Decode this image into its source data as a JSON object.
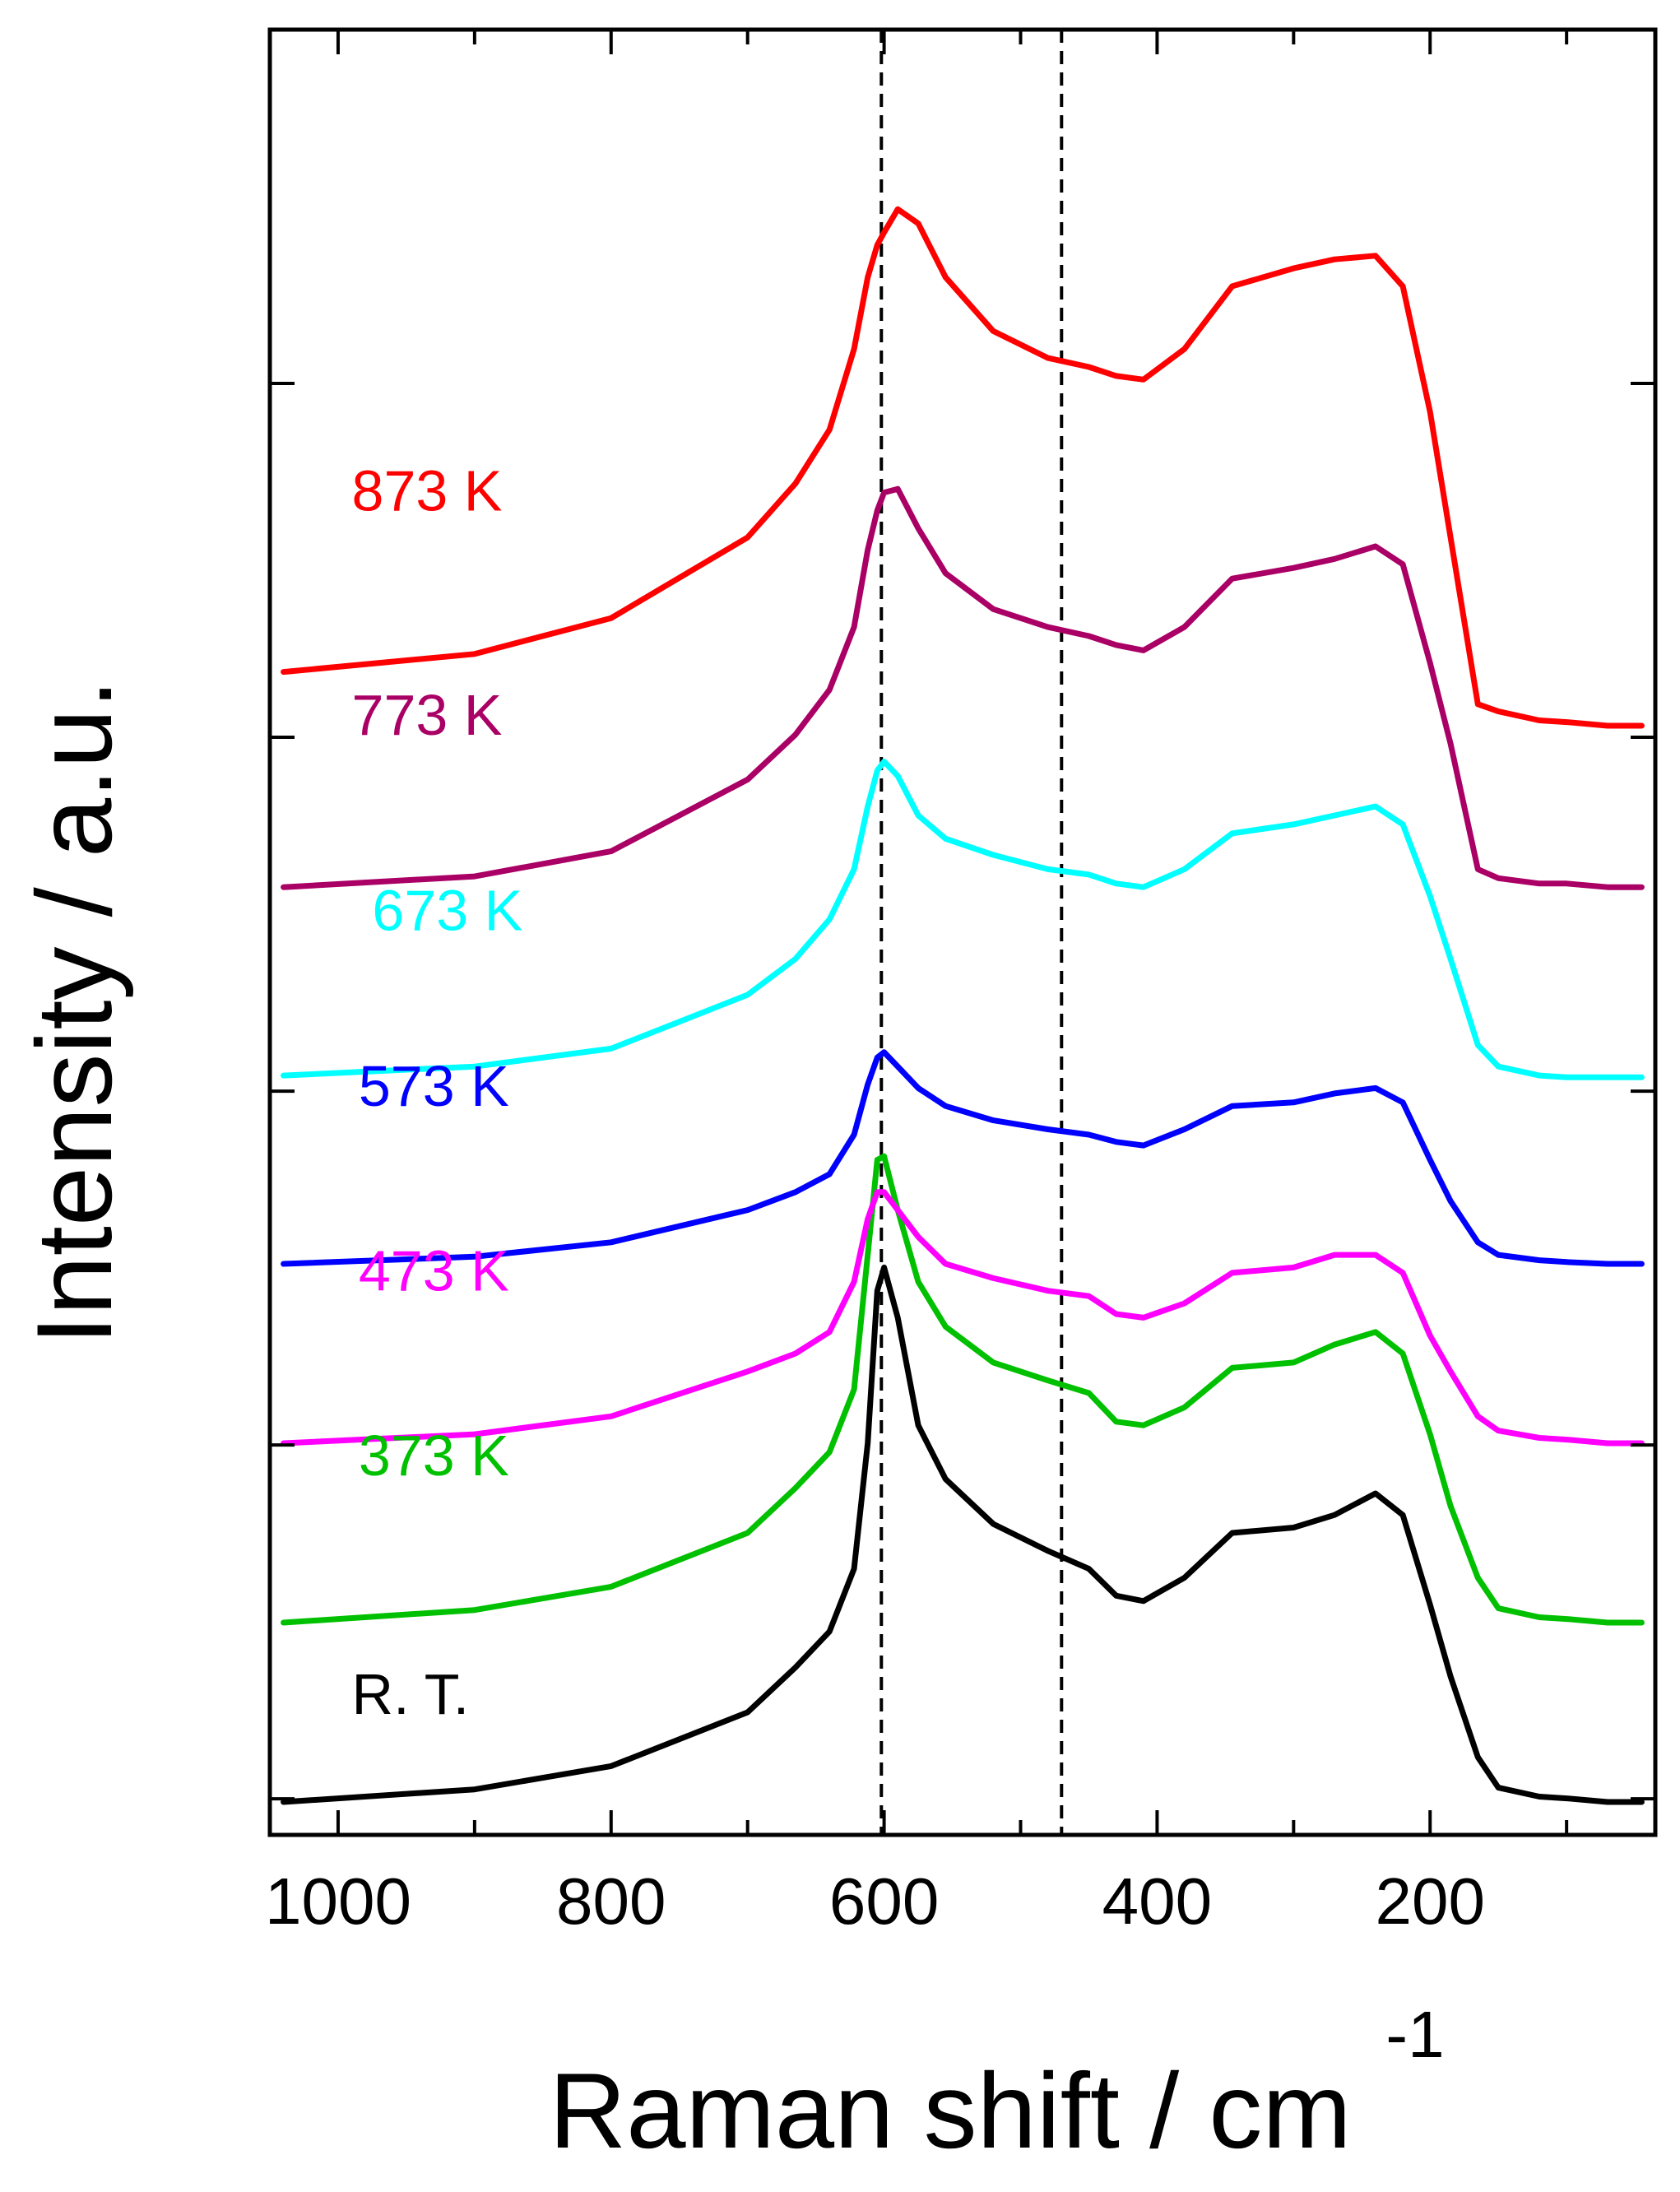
{
  "chart_data": {
    "type": "line",
    "title": "",
    "xlabel": "Raman shift / cm",
    "xlabel_superscript": "-1",
    "ylabel": "Intensity / a.u.",
    "xlim": [
      1050,
      35
    ],
    "x_reversed": true,
    "ylim": [
      0,
      10
    ],
    "x_ticks": [
      1000,
      800,
      600,
      400,
      200
    ],
    "y_tick_count": 5,
    "reference_lines": [
      602,
      470
    ],
    "series": [
      {
        "name": "R. T.",
        "color": "#000000",
        "label_x": 990,
        "label_y": 0.49,
        "points": [
          [
            1040,
            0.0
          ],
          [
            900,
            0.07
          ],
          [
            800,
            0.2
          ],
          [
            700,
            0.5
          ],
          [
            665,
            0.75
          ],
          [
            640,
            0.95
          ],
          [
            622,
            1.3
          ],
          [
            612,
            2.0
          ],
          [
            605,
            2.85
          ],
          [
            600,
            2.98
          ],
          [
            590,
            2.7
          ],
          [
            575,
            2.1
          ],
          [
            555,
            1.8
          ],
          [
            520,
            1.55
          ],
          [
            480,
            1.4
          ],
          [
            450,
            1.3
          ],
          [
            430,
            1.15
          ],
          [
            410,
            1.12
          ],
          [
            380,
            1.25
          ],
          [
            345,
            1.5
          ],
          [
            300,
            1.53
          ],
          [
            270,
            1.6
          ],
          [
            240,
            1.72
          ],
          [
            220,
            1.6
          ],
          [
            200,
            1.1
          ],
          [
            185,
            0.7
          ],
          [
            165,
            0.25
          ],
          [
            150,
            0.08
          ],
          [
            120,
            0.03
          ],
          [
            100,
            0.02
          ],
          [
            70,
            0.0
          ],
          [
            45,
            0.0
          ]
        ]
      },
      {
        "name": "373 K",
        "color": "#00c000",
        "label_x": 985,
        "label_y": 1.82,
        "points": [
          [
            1040,
            1.0
          ],
          [
            900,
            1.07
          ],
          [
            800,
            1.2
          ],
          [
            700,
            1.5
          ],
          [
            665,
            1.75
          ],
          [
            640,
            1.95
          ],
          [
            622,
            2.3
          ],
          [
            612,
            3.05
          ],
          [
            605,
            3.58
          ],
          [
            600,
            3.6
          ],
          [
            590,
            3.3
          ],
          [
            575,
            2.9
          ],
          [
            555,
            2.65
          ],
          [
            520,
            2.45
          ],
          [
            480,
            2.35
          ],
          [
            450,
            2.28
          ],
          [
            430,
            2.12
          ],
          [
            410,
            2.1
          ],
          [
            380,
            2.2
          ],
          [
            345,
            2.42
          ],
          [
            300,
            2.45
          ],
          [
            270,
            2.55
          ],
          [
            240,
            2.62
          ],
          [
            220,
            2.5
          ],
          [
            200,
            2.05
          ],
          [
            185,
            1.65
          ],
          [
            165,
            1.25
          ],
          [
            150,
            1.08
          ],
          [
            120,
            1.03
          ],
          [
            100,
            1.02
          ],
          [
            70,
            1.0
          ],
          [
            45,
            1.0
          ]
        ]
      },
      {
        "name": "473 K",
        "color": "#ff00ff",
        "label_x": 985,
        "label_y": 2.85,
        "points": [
          [
            1040,
            2.0
          ],
          [
            900,
            2.05
          ],
          [
            800,
            2.15
          ],
          [
            700,
            2.4
          ],
          [
            665,
            2.5
          ],
          [
            640,
            2.62
          ],
          [
            622,
            2.9
          ],
          [
            612,
            3.25
          ],
          [
            605,
            3.4
          ],
          [
            600,
            3.4
          ],
          [
            590,
            3.3
          ],
          [
            575,
            3.15
          ],
          [
            555,
            3.0
          ],
          [
            520,
            2.92
          ],
          [
            480,
            2.85
          ],
          [
            450,
            2.82
          ],
          [
            430,
            2.72
          ],
          [
            410,
            2.7
          ],
          [
            380,
            2.78
          ],
          [
            345,
            2.95
          ],
          [
            300,
            2.98
          ],
          [
            270,
            3.05
          ],
          [
            240,
            3.05
          ],
          [
            220,
            2.95
          ],
          [
            200,
            2.6
          ],
          [
            185,
            2.4
          ],
          [
            165,
            2.15
          ],
          [
            150,
            2.07
          ],
          [
            120,
            2.03
          ],
          [
            100,
            2.02
          ],
          [
            70,
            2.0
          ],
          [
            45,
            2.0
          ]
        ]
      },
      {
        "name": "573 K",
        "color": "#0000ff",
        "label_x": 985,
        "label_y": 3.88,
        "points": [
          [
            1040,
            3.0
          ],
          [
            900,
            3.04
          ],
          [
            800,
            3.12
          ],
          [
            700,
            3.3
          ],
          [
            665,
            3.4
          ],
          [
            640,
            3.5
          ],
          [
            622,
            3.72
          ],
          [
            612,
            4.0
          ],
          [
            605,
            4.15
          ],
          [
            600,
            4.18
          ],
          [
            590,
            4.1
          ],
          [
            575,
            3.98
          ],
          [
            555,
            3.88
          ],
          [
            520,
            3.8
          ],
          [
            480,
            3.75
          ],
          [
            450,
            3.72
          ],
          [
            430,
            3.68
          ],
          [
            410,
            3.66
          ],
          [
            380,
            3.75
          ],
          [
            345,
            3.88
          ],
          [
            300,
            3.9
          ],
          [
            270,
            3.95
          ],
          [
            240,
            3.98
          ],
          [
            220,
            3.9
          ],
          [
            200,
            3.58
          ],
          [
            185,
            3.35
          ],
          [
            165,
            3.12
          ],
          [
            150,
            3.05
          ],
          [
            120,
            3.02
          ],
          [
            100,
            3.01
          ],
          [
            70,
            3.0
          ],
          [
            45,
            3.0
          ]
        ]
      },
      {
        "name": "673 K",
        "color": "#00ffff",
        "label_x": 975,
        "label_y": 4.86,
        "points": [
          [
            1040,
            4.05
          ],
          [
            900,
            4.1
          ],
          [
            800,
            4.2
          ],
          [
            700,
            4.5
          ],
          [
            665,
            4.7
          ],
          [
            640,
            4.92
          ],
          [
            622,
            5.2
          ],
          [
            612,
            5.55
          ],
          [
            605,
            5.75
          ],
          [
            600,
            5.8
          ],
          [
            590,
            5.72
          ],
          [
            575,
            5.5
          ],
          [
            555,
            5.37
          ],
          [
            520,
            5.28
          ],
          [
            480,
            5.2
          ],
          [
            450,
            5.17
          ],
          [
            430,
            5.12
          ],
          [
            410,
            5.1
          ],
          [
            380,
            5.2
          ],
          [
            345,
            5.4
          ],
          [
            300,
            5.45
          ],
          [
            270,
            5.5
          ],
          [
            240,
            5.55
          ],
          [
            220,
            5.45
          ],
          [
            200,
            5.05
          ],
          [
            185,
            4.7
          ],
          [
            165,
            4.22
          ],
          [
            150,
            4.1
          ],
          [
            120,
            4.05
          ],
          [
            100,
            4.04
          ],
          [
            70,
            4.04
          ],
          [
            45,
            4.04
          ]
        ]
      },
      {
        "name": "773 K",
        "color": "#aa0066",
        "label_x": 990,
        "label_y": 5.95,
        "points": [
          [
            1040,
            5.1
          ],
          [
            900,
            5.16
          ],
          [
            800,
            5.3
          ],
          [
            700,
            5.7
          ],
          [
            665,
            5.95
          ],
          [
            640,
            6.2
          ],
          [
            622,
            6.55
          ],
          [
            612,
            6.98
          ],
          [
            605,
            7.2
          ],
          [
            600,
            7.3
          ],
          [
            590,
            7.32
          ],
          [
            575,
            7.1
          ],
          [
            555,
            6.85
          ],
          [
            520,
            6.65
          ],
          [
            480,
            6.55
          ],
          [
            450,
            6.5
          ],
          [
            430,
            6.45
          ],
          [
            410,
            6.42
          ],
          [
            380,
            6.55
          ],
          [
            345,
            6.82
          ],
          [
            300,
            6.88
          ],
          [
            270,
            6.93
          ],
          [
            240,
            7.0
          ],
          [
            220,
            6.9
          ],
          [
            200,
            6.35
          ],
          [
            185,
            5.9
          ],
          [
            165,
            5.2
          ],
          [
            150,
            5.15
          ],
          [
            120,
            5.12
          ],
          [
            100,
            5.12
          ],
          [
            70,
            5.1
          ],
          [
            45,
            5.1
          ]
        ]
      },
      {
        "name": "873 K",
        "color": "#ff0000",
        "label_x": 990,
        "label_y": 7.2,
        "points": [
          [
            1040,
            6.3
          ],
          [
            900,
            6.4
          ],
          [
            800,
            6.6
          ],
          [
            700,
            7.05
          ],
          [
            665,
            7.35
          ],
          [
            640,
            7.65
          ],
          [
            622,
            8.1
          ],
          [
            612,
            8.5
          ],
          [
            605,
            8.68
          ],
          [
            600,
            8.75
          ],
          [
            590,
            8.88
          ],
          [
            575,
            8.8
          ],
          [
            555,
            8.5
          ],
          [
            520,
            8.2
          ],
          [
            480,
            8.05
          ],
          [
            450,
            8.0
          ],
          [
            430,
            7.95
          ],
          [
            410,
            7.93
          ],
          [
            380,
            8.1
          ],
          [
            345,
            8.45
          ],
          [
            300,
            8.55
          ],
          [
            270,
            8.6
          ],
          [
            240,
            8.62
          ],
          [
            220,
            8.45
          ],
          [
            200,
            7.75
          ],
          [
            185,
            7.05
          ],
          [
            165,
            6.12
          ],
          [
            150,
            6.08
          ],
          [
            120,
            6.03
          ],
          [
            100,
            6.02
          ],
          [
            70,
            6.0
          ],
          [
            45,
            6.0
          ]
        ]
      }
    ]
  }
}
